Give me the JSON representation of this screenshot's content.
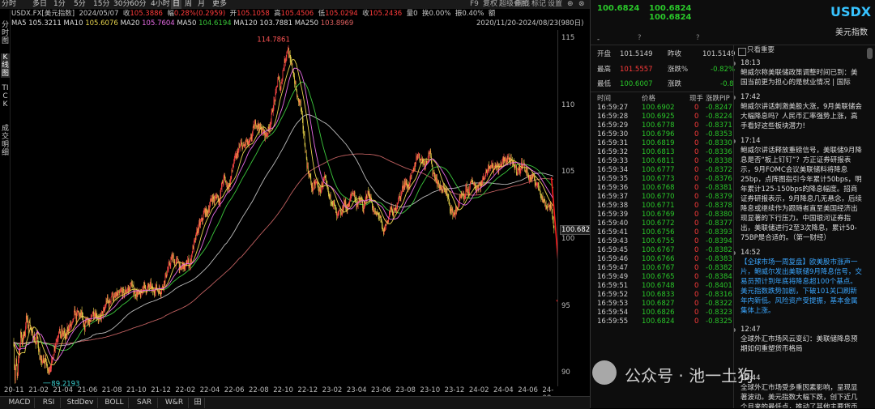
{
  "toolbar": {
    "timeframes": [
      "分时",
      "多日",
      "1分",
      "5分",
      "15分",
      "30分",
      "60分",
      "4小时",
      "日",
      "周",
      "月",
      "更多"
    ],
    "active_timeframe": "日",
    "f9_label": "F9",
    "actions": [
      "复权",
      "超级叠加",
      "画线",
      "标记",
      "设置"
    ]
  },
  "info": {
    "symbol": "USDX.FX[美元指数]",
    "date": "2024/05/07",
    "close_label": "收",
    "close": "105.3886",
    "change_label": "幅",
    "change": "0.28%(0.2959)",
    "open_label": "开",
    "open": "105.1058",
    "high_label": "高",
    "high": "105.4506",
    "low_label": "低",
    "low": "105.0294",
    "close2_label": "收",
    "close2": "105.2436",
    "volume_label": "量",
    "volume": "0",
    "turnover_label": "换",
    "turnover": "0.00%",
    "amp_label": "振",
    "amp": "0.40%",
    "extra": "额",
    "range": "2020/11/20-2024/08/23(980日)"
  },
  "ma": [
    {
      "label": "MA5",
      "value": "105.3211",
      "color": "#e0e0e0"
    },
    {
      "label": "MA10",
      "value": "105.6076",
      "color": "#e8d44d"
    },
    {
      "label": "MA20",
      "value": "105.7604",
      "color": "#e86ce8"
    },
    {
      "label": "MA50",
      "value": "104.6194",
      "color": "#38c838"
    },
    {
      "label": "MA120",
      "value": "103.7881",
      "color": "#e0e0e0"
    },
    {
      "label": "MA250",
      "value": "103.8969",
      "color": "#e06060"
    }
  ],
  "left_strip": [
    "分时图",
    "K线图",
    "TICK",
    "成交明细"
  ],
  "chart_data": {
    "type": "candlestick",
    "x_ticks": [
      "20-11",
      "21-02",
      "21-04",
      "21-06",
      "21-08",
      "21-10",
      "21-12",
      "22-02",
      "22-04",
      "22-06",
      "22-08",
      "22-10",
      "22-12",
      "23-02",
      "23-04",
      "23-06",
      "23-08",
      "23-10",
      "23-12",
      "24-02",
      "24-04",
      "24-06",
      "24-08"
    ],
    "y_ticks": [
      115,
      110,
      105,
      100,
      95,
      90
    ],
    "ylim": [
      89,
      115.6
    ],
    "max_label": "114.7861",
    "min_label": "89.2193",
    "last_price_label": "100.682",
    "path": [
      [
        0,
        92.3
      ],
      [
        0.05,
        90.4
      ],
      [
        0.1,
        89.4
      ],
      [
        0.15,
        90.6
      ],
      [
        0.2,
        91.0
      ],
      [
        0.25,
        90.0
      ],
      [
        0.3,
        89.4
      ],
      [
        0.35,
        90.4
      ],
      [
        0.4,
        91.6
      ],
      [
        0.45,
        91.3
      ],
      [
        0.5,
        92.1
      ],
      [
        0.55,
        93.1
      ],
      [
        0.6,
        92.9
      ],
      [
        0.65,
        92.7
      ],
      [
        0.7,
        91.9
      ],
      [
        0.75,
        92.9
      ],
      [
        0.8,
        92.6
      ],
      [
        0.85,
        93.4
      ],
      [
        0.9,
        92.6
      ],
      [
        0.95,
        93.4
      ],
      [
        1.0,
        94.1
      ],
      [
        1.1,
        93.9
      ],
      [
        1.2,
        93.3
      ],
      [
        1.3,
        94.1
      ],
      [
        1.4,
        93.1
      ],
      [
        1.5,
        92.9
      ],
      [
        1.6,
        92.8
      ],
      [
        1.7,
        92.5
      ],
      [
        1.8,
        92.1
      ],
      [
        1.9,
        92.9
      ],
      [
        2.0,
        92.0
      ],
      [
        2.1,
        91.3
      ],
      [
        2.2,
        90.7
      ],
      [
        2.3,
        90.9
      ],
      [
        2.4,
        90.9
      ],
      [
        2.5,
        90.6
      ],
      [
        2.6,
        91.2
      ],
      [
        2.7,
        90.4
      ],
      [
        2.8,
        90.1
      ],
      [
        2.9,
        90.3
      ],
      [
        3.0,
        90.5
      ],
      [
        3.1,
        90.7
      ],
      [
        3.2,
        91.2
      ],
      [
        3.3,
        91.8
      ],
      [
        3.4,
        92.2
      ],
      [
        3.5,
        92.5
      ],
      [
        3.6,
        92.7
      ],
      [
        3.7,
        93.4
      ],
      [
        3.8,
        92.6
      ],
      [
        3.9,
        93.1
      ],
      [
        4.0,
        92.8
      ],
      [
        4.1,
        93.2
      ],
      [
        4.2,
        92.5
      ],
      [
        4.3,
        92.7
      ],
      [
        4.4,
        93.5
      ],
      [
        4.5,
        93.2
      ],
      [
        4.6,
        93.6
      ],
      [
        4.7,
        93.5
      ],
      [
        4.8,
        93.6
      ],
      [
        4.9,
        94.3
      ],
      [
        5.0,
        94.6
      ],
      [
        5.1,
        94.0
      ],
      [
        5.2,
        94.5
      ],
      [
        5.3,
        94.5
      ],
      [
        5.4,
        94.1
      ],
      [
        5.5,
        94.6
      ],
      [
        5.6,
        94.1
      ],
      [
        5.7,
        93.3
      ],
      [
        5.8,
        93.4
      ],
      [
        5.9,
        94.1
      ],
      [
        6.0,
        94.1
      ],
      [
        6.2,
        93.5
      ],
      [
        6.4,
        94.5
      ],
      [
        6.6,
        94.5
      ],
      [
        6.8,
        94.3
      ],
      [
        7.0,
        93.9
      ],
      [
        7.2,
        94.4
      ],
      [
        7.4,
        94.6
      ],
      [
        7.6,
        95.5
      ],
      [
        7.8,
        95.1
      ],
      [
        8.0,
        95.9
      ],
      [
        8.2,
        95.5
      ],
      [
        8.4,
        95.8
      ],
      [
        8.6,
        95.8
      ],
      [
        8.8,
        96.1
      ],
      [
        9.0,
        95.9
      ],
      [
        9.2,
        96.2
      ],
      [
        9.4,
        96.2
      ],
      [
        9.6,
        96.7
      ],
      [
        9.8,
        96.1
      ],
      [
        10.0,
        95.9
      ],
      [
        10.2,
        95.9
      ],
      [
        10.4,
        95.8
      ],
      [
        10.6,
        96.6
      ],
      [
        10.8,
        96.2
      ],
      [
        11.0,
        96.4
      ],
      [
        11.2,
        96.5
      ],
      [
        11.4,
        96.0
      ],
      [
        11.6,
        96.4
      ],
      [
        11.8,
        96.2
      ],
      [
        12.0,
        96.1
      ],
      [
        12.2,
        96.5
      ],
      [
        12.4,
        97.2
      ],
      [
        12.6,
        97.7
      ],
      [
        12.8,
        98.3
      ],
      [
        13.0,
        98.7
      ],
      [
        13.2,
        98.0
      ],
      [
        13.4,
        98.6
      ],
      [
        13.6,
        97.6
      ],
      [
        13.8,
        98.1
      ],
      [
        14.0,
        97.8
      ],
      [
        14.2,
        98.4
      ],
      [
        14.4,
        98.0
      ],
      [
        14.6,
        99.2
      ],
      [
        14.8,
        99.8
      ],
      [
        15.0,
        100.6
      ],
      [
        15.2,
        101.1
      ],
      [
        15.4,
        101.4
      ],
      [
        15.6,
        102.1
      ],
      [
        15.8,
        101.9
      ],
      [
        16.0,
        102.5
      ],
      [
        16.2,
        103.1
      ],
      [
        16.4,
        102.9
      ],
      [
        16.6,
        103.3
      ],
      [
        16.8,
        102.8
      ],
      [
        17.0,
        104.0
      ],
      [
        17.2,
        104.6
      ],
      [
        17.4,
        104.0
      ],
      [
        17.6,
        103.9
      ],
      [
        17.8,
        104.9
      ],
      [
        18.0,
        105.8
      ],
      [
        18.2,
        106.2
      ],
      [
        18.4,
        106.7
      ],
      [
        18.6,
        107.1
      ],
      [
        18.8,
        106.8
      ],
      [
        19.0,
        107.3
      ],
      [
        19.2,
        107.0
      ],
      [
        19.4,
        107.5
      ],
      [
        19.6,
        108.3
      ],
      [
        19.8,
        108.7
      ],
      [
        20.0,
        108.4
      ],
      [
        20.2,
        108.2
      ],
      [
        20.4,
        108.0
      ],
      [
        20.6,
        107.7
      ],
      [
        20.8,
        108.1
      ],
      [
        21.0,
        108.8
      ],
      [
        21.2,
        109.9
      ],
      [
        21.4,
        110.7
      ],
      [
        21.6,
        112.1
      ],
      [
        21.8,
        111.2
      ],
      [
        22.0,
        112.6
      ],
      [
        22.2,
        113.5
      ],
      [
        22.4,
        114.3
      ],
      [
        22.6,
        113.2
      ],
      [
        22.8,
        112.7
      ],
      [
        23.0,
        111.5
      ],
      [
        23.2,
        110.4
      ],
      [
        23.4,
        110.2
      ],
      [
        23.6,
        108.7
      ],
      [
        23.8,
        107.0
      ],
      [
        24.0,
        105.3
      ],
      [
        24.2,
        104.6
      ],
      [
        24.4,
        103.7
      ],
      [
        24.6,
        104.1
      ],
      [
        24.8,
        104.2
      ],
      [
        25.0,
        103.4
      ],
      [
        25.2,
        104.1
      ],
      [
        25.4,
        104.5
      ],
      [
        25.6,
        103.8
      ],
      [
        25.8,
        103.1
      ],
      [
        26.0,
        102.9
      ],
      [
        26.2,
        102.5
      ],
      [
        26.4,
        101.6
      ],
      [
        26.6,
        102.0
      ],
      [
        26.8,
        101.8
      ],
      [
        27.0,
        102.8
      ],
      [
        27.2,
        102.3
      ],
      [
        27.4,
        102.5
      ],
      [
        27.6,
        103.4
      ],
      [
        27.8,
        103.5
      ],
      [
        28.0,
        102.6
      ],
      [
        28.2,
        102.8
      ],
      [
        28.4,
        102.9
      ],
      [
        28.6,
        102.1
      ],
      [
        28.8,
        103.2
      ],
      [
        29.0,
        103.4
      ],
      [
        29.2,
        102.9
      ],
      [
        29.4,
        102.1
      ],
      [
        29.6,
        101.8
      ],
      [
        29.8,
        101.9
      ],
      [
        30.0,
        101.3
      ],
      [
        30.2,
        100.4
      ],
      [
        30.4,
        101.1
      ],
      [
        30.6,
        101.5
      ],
      [
        30.8,
        102.3
      ],
      [
        31.0,
        101.9
      ],
      [
        31.2,
        102.2
      ],
      [
        31.4,
        102.9
      ],
      [
        31.6,
        103.2
      ],
      [
        31.8,
        103.9
      ],
      [
        32.0,
        104.3
      ],
      [
        32.2,
        103.8
      ],
      [
        32.4,
        104.4
      ],
      [
        32.6,
        104.9
      ],
      [
        32.8,
        105.6
      ],
      [
        33.0,
        106.4
      ],
      [
        33.2,
        106.0
      ],
      [
        33.4,
        105.9
      ],
      [
        33.6,
        105.6
      ],
      [
        33.8,
        106.0
      ],
      [
        34.0,
        106.6
      ],
      [
        34.2,
        105.1
      ],
      [
        34.4,
        104.8
      ],
      [
        34.6,
        104.2
      ],
      [
        34.8,
        104.0
      ],
      [
        35.0,
        103.5
      ],
      [
        35.2,
        103.9
      ],
      [
        35.4,
        103.3
      ],
      [
        35.6,
        102.6
      ],
      [
        35.8,
        102.0
      ],
      [
        36.0,
        101.9
      ],
      [
        36.2,
        102.1
      ],
      [
        36.4,
        102.8
      ],
      [
        36.6,
        103.2
      ],
      [
        36.8,
        103.0
      ],
      [
        37.0,
        103.8
      ],
      [
        37.2,
        103.5
      ],
      [
        37.4,
        104.3
      ],
      [
        37.6,
        104.2
      ],
      [
        37.8,
        103.7
      ],
      [
        38.0,
        104.1
      ],
      [
        38.2,
        104.0
      ],
      [
        38.4,
        104.6
      ],
      [
        38.6,
        104.9
      ],
      [
        38.8,
        105.4
      ],
      [
        39.0,
        105.6
      ],
      [
        39.2,
        105.2
      ],
      [
        39.4,
        105.6
      ],
      [
        39.6,
        105.2
      ],
      [
        39.8,
        105.5
      ],
      [
        40.0,
        105.9
      ],
      [
        40.2,
        105.8
      ],
      [
        40.4,
        106.1
      ],
      [
        40.6,
        105.8
      ],
      [
        40.8,
        105.6
      ],
      [
        41.0,
        105.3
      ],
      [
        41.2,
        105.1
      ],
      [
        41.4,
        105.2
      ],
      [
        41.6,
        105.8
      ],
      [
        41.8,
        105.2
      ],
      [
        42.0,
        104.8
      ],
      [
        42.2,
        104.5
      ],
      [
        42.4,
        104.6
      ],
      [
        42.6,
        104.3
      ],
      [
        42.8,
        104.0
      ],
      [
        43.0,
        103.7
      ],
      [
        43.2,
        103.0
      ],
      [
        43.4,
        102.7
      ],
      [
        43.6,
        102.4
      ],
      [
        43.8,
        102.5
      ],
      [
        44.0,
        102.0
      ],
      [
        44.1,
        101.2
      ],
      [
        44.2,
        100.7
      ]
    ],
    "candle_count": 980,
    "arrows": [
      {
        "from": [
          43.95,
          104.6
        ],
        "to": [
          44.8,
          94.9
        ],
        "color": "#ff2020"
      },
      {
        "from": [
          45.2,
          95.0
        ],
        "to": [
          46.0,
          90.4
        ],
        "color": "#ff2020"
      }
    ]
  },
  "bottom_tabs": [
    "MACD",
    "RSI",
    "StdDev",
    "BOLL",
    "SAR",
    "W&R",
    "田"
  ],
  "quote": {
    "bid": "100.6824",
    "ask_top": "100.6824",
    "ask_bottom": "100.6824",
    "dash": "-",
    "question1": "?",
    "question2": "?",
    "symbol": "USDX",
    "name": "美元指数",
    "open_label": "开盘",
    "open": "101.5149",
    "prev_label": "昨收",
    "prev": "101.5149",
    "high_label": "最高",
    "high": "101.5557",
    "chg_pct_label": "涨跌%",
    "chg_pct": "-0.82%",
    "low_label": "最低",
    "low": "100.6007",
    "chg_label": "涨跌",
    "chg": "-0.8"
  },
  "ticks_header": {
    "time": "时间",
    "price": "价格",
    "vol": "现手",
    "pip": "涨跌PIP"
  },
  "ticks": [
    {
      "time": "16:59:27",
      "price": "100.6902",
      "vol": "0",
      "pip": "-0.8247"
    },
    {
      "time": "16:59:28",
      "price": "100.6925",
      "vol": "0",
      "pip": "-0.8224"
    },
    {
      "time": "16:59:29",
      "price": "100.6778",
      "vol": "0",
      "pip": "-0.8371"
    },
    {
      "time": "16:59:30",
      "price": "100.6796",
      "vol": "0",
      "pip": "-0.8353"
    },
    {
      "time": "16:59:31",
      "price": "100.6819",
      "vol": "0",
      "pip": "-0.8330"
    },
    {
      "time": "16:59:32",
      "price": "100.6813",
      "vol": "0",
      "pip": "-0.8336"
    },
    {
      "time": "16:59:33",
      "price": "100.6811",
      "vol": "0",
      "pip": "-0.8338"
    },
    {
      "time": "16:59:34",
      "price": "100.6777",
      "vol": "0",
      "pip": "-0.8372"
    },
    {
      "time": "16:59:35",
      "price": "100.6773",
      "vol": "0",
      "pip": "-0.8376"
    },
    {
      "time": "16:59:36",
      "price": "100.6768",
      "vol": "0",
      "pip": "-0.8381"
    },
    {
      "time": "16:59:37",
      "price": "100.6770",
      "vol": "0",
      "pip": "-0.8379"
    },
    {
      "time": "16:59:38",
      "price": "100.6771",
      "vol": "0",
      "pip": "-0.8378"
    },
    {
      "time": "16:59:39",
      "price": "100.6769",
      "vol": "0",
      "pip": "-0.8380"
    },
    {
      "time": "16:59:40",
      "price": "100.6772",
      "vol": "0",
      "pip": "-0.8377"
    },
    {
      "time": "16:59:41",
      "price": "100.6756",
      "vol": "0",
      "pip": "-0.8393"
    },
    {
      "time": "16:59:43",
      "price": "100.6755",
      "vol": "0",
      "pip": "-0.8394"
    },
    {
      "time": "16:59:45",
      "price": "100.6767",
      "vol": "0",
      "pip": "-0.8382"
    },
    {
      "time": "16:59:46",
      "price": "100.6766",
      "vol": "0",
      "pip": "-0.8383"
    },
    {
      "time": "16:59:47",
      "price": "100.6767",
      "vol": "0",
      "pip": "-0.8382"
    },
    {
      "time": "16:59:49",
      "price": "100.6765",
      "vol": "0",
      "pip": "-0.8384"
    },
    {
      "time": "16:59:51",
      "price": "100.6748",
      "vol": "0",
      "pip": "-0.8401"
    },
    {
      "time": "16:59:52",
      "price": "100.6833",
      "vol": "0",
      "pip": "-0.8316"
    },
    {
      "time": "16:59:53",
      "price": "100.6827",
      "vol": "0",
      "pip": "-0.8322"
    },
    {
      "time": "16:59:54",
      "price": "100.6826",
      "vol": "0",
      "pip": "-0.8323"
    },
    {
      "time": "16:59:55",
      "price": "100.6824",
      "vol": "0",
      "pip": "-0.8325"
    }
  ],
  "news_header": "只看重要",
  "news": [
    {
      "time": "18:13",
      "text": "鲍威尔称美联储政策调整时间已到：美国当前更为担心的是就业情况 | 国际",
      "color": "#dddddd"
    },
    {
      "time": "17:42",
      "text": "鲍威尔讲话刺激美股大涨，9月美联储会大幅降息吗？人民币汇率强势上涨，高手看好这些板块潜力!",
      "color": "#dddddd"
    },
    {
      "time": "17:14",
      "text": "鲍威尔讲话释放重磅信号，美联储9月降息是否“板上钉钉”？方正证券研报表示，9月FOMC会议美联储料将降息25bp，点阵图指引今年累计50bps，明年累计125-150bps的降息幅度。招商证券研报表示，9月降息几无悬念，后续降息或继续作为跟随者直至美国经济出现显著的下行压力。中国银河证券指出，美联储进行2至3次降息，累计50-75BP是合适的。（第一财经）",
      "color": "#dddddd"
    },
    {
      "time": "14:52",
      "text": "【全球市场一周复盘】欧美股市涨声一片，鲍威尔发出美联储9月降息信号，交易员预计到年底将降息超100个基点。美元指数跌势加剧，下破101关口刷新年内新低。风险资产受提振，基本金属集体上涨。",
      "color": "#3aa6ff"
    },
    {
      "time": "12:47",
      "text": "全球外汇市场风云变幻：美联储降息预期如何重塑货币格局",
      "color": "#dddddd"
    },
    {
      "time": "12:44",
      "text": "全球外汇市场受多重因素影响，呈现显著波动。美元指数大幅下跌，创下近几个月来的最低点，推动了其他主要货币的上涨。以下是对本周主要货币走势的",
      "color": "#dddddd"
    }
  ],
  "watermark": {
    "brand": "公众号 · 池一土狗"
  },
  "toolbar_icons": [
    "close-icon",
    "magnifier-icon"
  ]
}
